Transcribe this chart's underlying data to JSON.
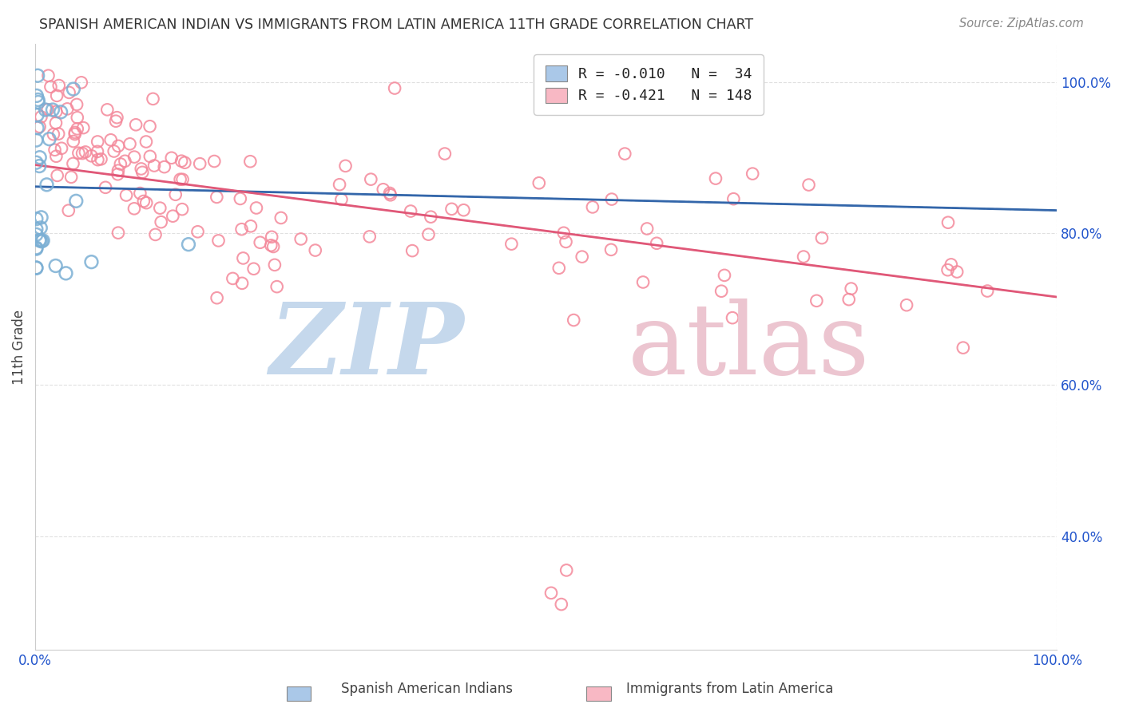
{
  "title": "SPANISH AMERICAN INDIAN VS IMMIGRANTS FROM LATIN AMERICA 11TH GRADE CORRELATION CHART",
  "source": "Source: ZipAtlas.com",
  "ylabel": "11th Grade",
  "blue_color": "#7bafd4",
  "pink_color": "#f4889a",
  "blue_line_color": "#3366aa",
  "pink_line_color": "#e05878",
  "blue_dashed_color": "#7bafd4",
  "pink_dashed_color": "#f4889a",
  "legend_label1": "R = -0.010   N =  34",
  "legend_label2": "R = -0.421   N = 148",
  "legend_r_color": "#3355cc",
  "ylim": [
    0.25,
    1.05
  ],
  "xlim": [
    0.0,
    1.0
  ],
  "yticks": [
    0.4,
    0.6,
    0.8,
    1.0
  ],
  "ytick_labels": [
    "40.0%",
    "60.0%",
    "80.0%",
    "100.0%"
  ],
  "xtick_labels": [
    "0.0%",
    "100.0%"
  ],
  "background_color": "#ffffff",
  "grid_color": "#cccccc",
  "title_color": "#333333",
  "source_color": "#888888",
  "watermark_zip_color": "#c5d8ec",
  "watermark_atlas_color": "#ecc5d0"
}
